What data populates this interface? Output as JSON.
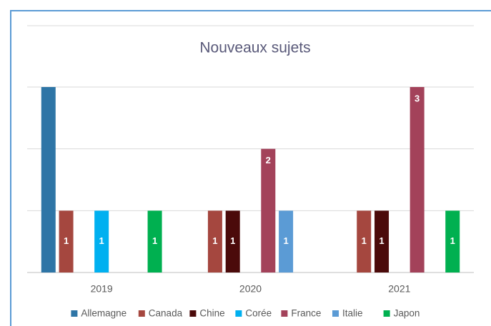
{
  "chart_data": {
    "type": "bar",
    "title": "Nouveaux sujets",
    "categories": [
      "2019",
      "2020",
      "2021"
    ],
    "series": [
      {
        "name": "Allemagne",
        "color": "#2e75a6",
        "values": [
          3,
          null,
          null
        ],
        "show_labels": false
      },
      {
        "name": "Canada",
        "color": "#a5473f",
        "values": [
          1,
          1,
          1
        ],
        "show_labels": true
      },
      {
        "name": "Chine",
        "color": "#4b0a0a",
        "values": [
          null,
          1,
          1
        ],
        "show_labels": true
      },
      {
        "name": "Corée",
        "color": "#00b0f0",
        "values": [
          1,
          null,
          null
        ],
        "show_labels": true
      },
      {
        "name": "France",
        "color": "#a3425a",
        "values": [
          null,
          2,
          3
        ],
        "show_labels": true
      },
      {
        "name": "Italie",
        "color": "#5b9bd5",
        "values": [
          null,
          1,
          null
        ],
        "show_labels": true
      },
      {
        "name": "Japon",
        "color": "#00b050",
        "values": [
          1,
          null,
          1
        ],
        "show_labels": true
      }
    ],
    "ylim": [
      0,
      3
    ],
    "yticks": [
      0,
      1,
      2,
      3
    ],
    "ytick_labels": false,
    "grid": true,
    "legend": "bottom"
  }
}
